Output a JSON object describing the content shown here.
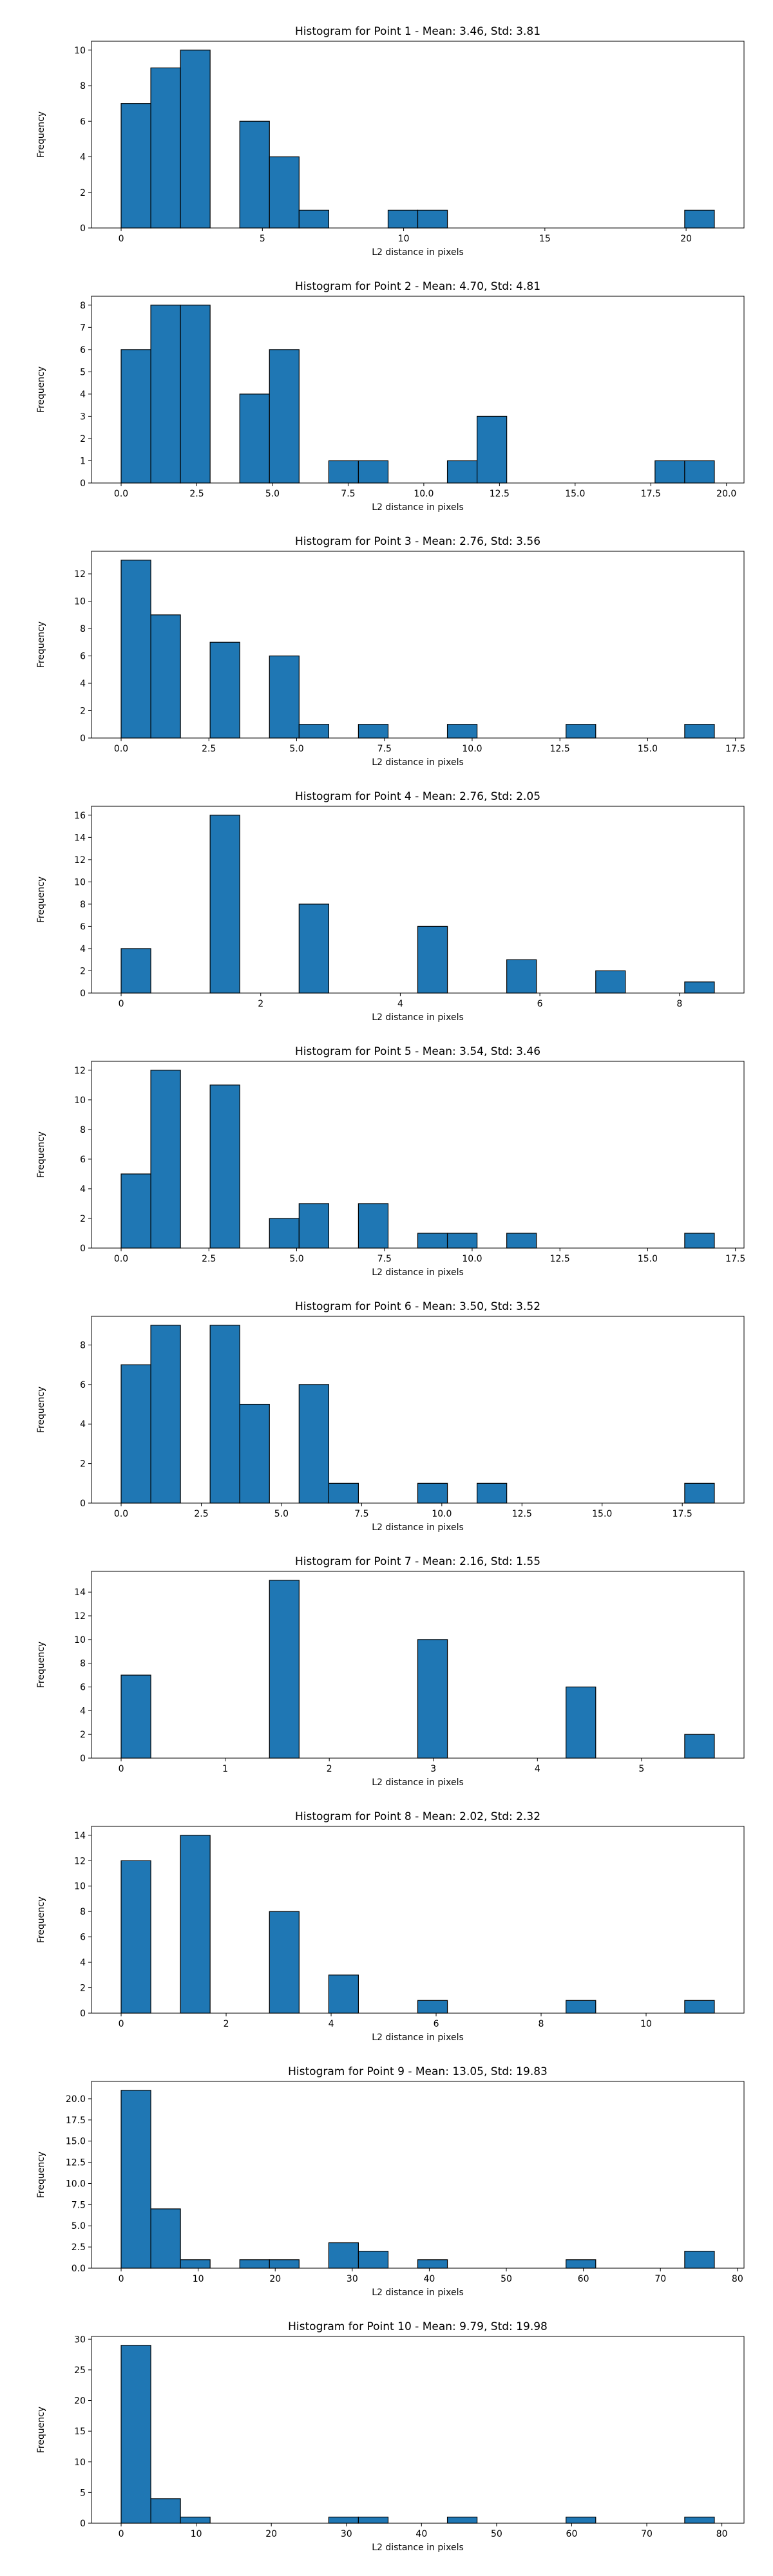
{
  "chart_data": [
    {
      "type": "histogram",
      "title": "Histogram for Point 1 - Mean: 3.46, Std: 3.81",
      "xlabel": "L2 distance in pixels",
      "ylabel": "Frequency",
      "xlim": [
        -1.05,
        22.05
      ],
      "ylim": [
        0,
        10.5
      ],
      "xticks": [
        {
          "v": 0,
          "label": "0"
        },
        {
          "v": 5,
          "label": "5"
        },
        {
          "v": 10,
          "label": "10"
        },
        {
          "v": 15,
          "label": "15"
        },
        {
          "v": 20,
          "label": "20"
        }
      ],
      "yticks": [
        {
          "v": 0,
          "label": "0"
        },
        {
          "v": 2,
          "label": "2"
        },
        {
          "v": 4,
          "label": "4"
        },
        {
          "v": 6,
          "label": "6"
        },
        {
          "v": 8,
          "label": "8"
        },
        {
          "v": 10,
          "label": "10"
        }
      ],
      "bin_edges": [
        0,
        1.05,
        2.1,
        3.15,
        4.2,
        5.25,
        6.3,
        7.35,
        8.4,
        9.45,
        10.5,
        11.55,
        12.6,
        13.65,
        14.7,
        15.75,
        16.8,
        17.85,
        18.9,
        19.95,
        21.0
      ],
      "counts": [
        7,
        9,
        10,
        0,
        6,
        4,
        1,
        0,
        0,
        1,
        1,
        0,
        0,
        0,
        0,
        0,
        0,
        0,
        0,
        1
      ]
    },
    {
      "type": "histogram",
      "title": "Histogram for Point 2 - Mean: 4.70, Std: 4.81",
      "xlabel": "L2 distance in pixels",
      "ylabel": "Frequency",
      "xlim": [
        -0.98,
        20.58
      ],
      "ylim": [
        0,
        8.4
      ],
      "xticks": [
        {
          "v": 0,
          "label": "0.0"
        },
        {
          "v": 2.5,
          "label": "2.5"
        },
        {
          "v": 5,
          "label": "5.0"
        },
        {
          "v": 7.5,
          "label": "7.5"
        },
        {
          "v": 10,
          "label": "10.0"
        },
        {
          "v": 12.5,
          "label": "12.5"
        },
        {
          "v": 15,
          "label": "15.0"
        },
        {
          "v": 17.5,
          "label": "17.5"
        },
        {
          "v": 20,
          "label": "20.0"
        }
      ],
      "yticks": [
        {
          "v": 0,
          "label": "0"
        },
        {
          "v": 1,
          "label": "1"
        },
        {
          "v": 2,
          "label": "2"
        },
        {
          "v": 3,
          "label": "3"
        },
        {
          "v": 4,
          "label": "4"
        },
        {
          "v": 5,
          "label": "5"
        },
        {
          "v": 6,
          "label": "6"
        },
        {
          "v": 7,
          "label": "7"
        },
        {
          "v": 8,
          "label": "8"
        }
      ],
      "bin_edges": [
        0,
        0.98,
        1.96,
        2.94,
        3.92,
        4.9,
        5.88,
        6.86,
        7.84,
        8.82,
        9.8,
        10.78,
        11.76,
        12.74,
        13.72,
        14.7,
        15.68,
        16.66,
        17.64,
        18.62,
        19.6
      ],
      "counts": [
        6,
        8,
        8,
        0,
        4,
        6,
        0,
        1,
        1,
        0,
        0,
        1,
        3,
        0,
        0,
        0,
        0,
        0,
        1,
        1
      ]
    },
    {
      "type": "histogram",
      "title": "Histogram for Point 3 - Mean: 2.76, Std: 3.56",
      "xlabel": "L2 distance in pixels",
      "ylabel": "Frequency",
      "xlim": [
        -0.845,
        17.745
      ],
      "ylim": [
        0,
        13.65
      ],
      "xticks": [
        {
          "v": 0,
          "label": "0.0"
        },
        {
          "v": 2.5,
          "label": "2.5"
        },
        {
          "v": 5,
          "label": "5.0"
        },
        {
          "v": 7.5,
          "label": "7.5"
        },
        {
          "v": 10,
          "label": "10.0"
        },
        {
          "v": 12.5,
          "label": "12.5"
        },
        {
          "v": 15,
          "label": "15.0"
        },
        {
          "v": 17.5,
          "label": "17.5"
        }
      ],
      "yticks": [
        {
          "v": 0,
          "label": "0"
        },
        {
          "v": 2,
          "label": "2"
        },
        {
          "v": 4,
          "label": "4"
        },
        {
          "v": 6,
          "label": "6"
        },
        {
          "v": 8,
          "label": "8"
        },
        {
          "v": 10,
          "label": "10"
        },
        {
          "v": 12,
          "label": "12"
        }
      ],
      "bin_edges": [
        0,
        0.845,
        1.69,
        2.535,
        3.38,
        4.225,
        5.07,
        5.915,
        6.76,
        7.605,
        8.45,
        9.295,
        10.14,
        10.985,
        11.83,
        12.675,
        13.52,
        14.365,
        15.21,
        16.055,
        16.9
      ],
      "counts": [
        13,
        9,
        0,
        7,
        0,
        6,
        1,
        0,
        1,
        0,
        0,
        1,
        0,
        0,
        0,
        1,
        0,
        0,
        0,
        1
      ]
    },
    {
      "type": "histogram",
      "title": "Histogram for Point 4 - Mean: 2.76, Std: 2.05",
      "xlabel": "L2 distance in pixels",
      "ylabel": "Frequency",
      "xlim": [
        -0.425,
        8.925
      ],
      "ylim": [
        0,
        16.8
      ],
      "xticks": [
        {
          "v": 0,
          "label": "0"
        },
        {
          "v": 2,
          "label": "2"
        },
        {
          "v": 4,
          "label": "4"
        },
        {
          "v": 6,
          "label": "6"
        },
        {
          "v": 8,
          "label": "8"
        }
      ],
      "yticks": [
        {
          "v": 0,
          "label": "0"
        },
        {
          "v": 2,
          "label": "2"
        },
        {
          "v": 4,
          "label": "4"
        },
        {
          "v": 6,
          "label": "6"
        },
        {
          "v": 8,
          "label": "8"
        },
        {
          "v": 10,
          "label": "10"
        },
        {
          "v": 12,
          "label": "12"
        },
        {
          "v": 14,
          "label": "14"
        },
        {
          "v": 16,
          "label": "16"
        }
      ],
      "bin_edges": [
        0,
        0.425,
        0.85,
        1.275,
        1.7,
        2.125,
        2.55,
        2.975,
        3.4,
        3.825,
        4.25,
        4.675,
        5.1,
        5.525,
        5.95,
        6.375,
        6.8,
        7.225,
        7.65,
        8.075,
        8.5
      ],
      "counts": [
        4,
        0,
        0,
        16,
        0,
        0,
        8,
        0,
        0,
        0,
        6,
        0,
        0,
        3,
        0,
        0,
        2,
        0,
        0,
        1
      ]
    },
    {
      "type": "histogram",
      "title": "Histogram for Point 5 - Mean: 3.54, Std: 3.46",
      "xlabel": "L2 distance in pixels",
      "ylabel": "Frequency",
      "xlim": [
        -0.845,
        17.745
      ],
      "ylim": [
        0,
        12.6
      ],
      "xticks": [
        {
          "v": 0,
          "label": "0.0"
        },
        {
          "v": 2.5,
          "label": "2.5"
        },
        {
          "v": 5,
          "label": "5.0"
        },
        {
          "v": 7.5,
          "label": "7.5"
        },
        {
          "v": 10,
          "label": "10.0"
        },
        {
          "v": 12.5,
          "label": "12.5"
        },
        {
          "v": 15,
          "label": "15.0"
        },
        {
          "v": 17.5,
          "label": "17.5"
        }
      ],
      "yticks": [
        {
          "v": 0,
          "label": "0"
        },
        {
          "v": 2,
          "label": "2"
        },
        {
          "v": 4,
          "label": "4"
        },
        {
          "v": 6,
          "label": "6"
        },
        {
          "v": 8,
          "label": "8"
        },
        {
          "v": 10,
          "label": "10"
        },
        {
          "v": 12,
          "label": "12"
        }
      ],
      "bin_edges": [
        0,
        0.845,
        1.69,
        2.535,
        3.38,
        4.225,
        5.07,
        5.915,
        6.76,
        7.605,
        8.45,
        9.295,
        10.14,
        10.985,
        11.83,
        12.675,
        13.52,
        14.365,
        15.21,
        16.055,
        16.9
      ],
      "counts": [
        5,
        12,
        0,
        11,
        0,
        2,
        3,
        0,
        3,
        0,
        1,
        1,
        0,
        1,
        0,
        0,
        0,
        0,
        0,
        1
      ]
    },
    {
      "type": "histogram",
      "title": "Histogram for Point 6 - Mean: 3.50, Std: 3.52",
      "xlabel": "L2 distance in pixels",
      "ylabel": "Frequency",
      "xlim": [
        -0.925,
        19.425
      ],
      "ylim": [
        0,
        9.45
      ],
      "xticks": [
        {
          "v": 0,
          "label": "0.0"
        },
        {
          "v": 2.5,
          "label": "2.5"
        },
        {
          "v": 5,
          "label": "5.0"
        },
        {
          "v": 7.5,
          "label": "7.5"
        },
        {
          "v": 10,
          "label": "10.0"
        },
        {
          "v": 12.5,
          "label": "12.5"
        },
        {
          "v": 15,
          "label": "15.0"
        },
        {
          "v": 17.5,
          "label": "17.5"
        }
      ],
      "yticks": [
        {
          "v": 0,
          "label": "0"
        },
        {
          "v": 2,
          "label": "2"
        },
        {
          "v": 4,
          "label": "4"
        },
        {
          "v": 6,
          "label": "6"
        },
        {
          "v": 8,
          "label": "8"
        }
      ],
      "bin_edges": [
        0,
        0.925,
        1.85,
        2.775,
        3.7,
        4.625,
        5.55,
        6.475,
        7.4,
        8.325,
        9.25,
        10.175,
        11.1,
        12.025,
        12.95,
        13.875,
        14.8,
        15.725,
        16.65,
        17.575,
        18.5
      ],
      "counts": [
        7,
        9,
        0,
        9,
        5,
        0,
        6,
        1,
        0,
        0,
        1,
        0,
        1,
        0,
        0,
        0,
        0,
        0,
        0,
        1
      ]
    },
    {
      "type": "histogram",
      "title": "Histogram for Point 7 - Mean: 2.16, Std: 1.55",
      "xlabel": "L2 distance in pixels",
      "ylabel": "Frequency",
      "xlim": [
        -0.285,
        5.985
      ],
      "ylim": [
        0,
        15.75
      ],
      "xticks": [
        {
          "v": 0,
          "label": "0"
        },
        {
          "v": 1,
          "label": "1"
        },
        {
          "v": 2,
          "label": "2"
        },
        {
          "v": 3,
          "label": "3"
        },
        {
          "v": 4,
          "label": "4"
        },
        {
          "v": 5,
          "label": "5"
        }
      ],
      "yticks": [
        {
          "v": 0,
          "label": "0"
        },
        {
          "v": 2,
          "label": "2"
        },
        {
          "v": 4,
          "label": "4"
        },
        {
          "v": 6,
          "label": "6"
        },
        {
          "v": 8,
          "label": "8"
        },
        {
          "v": 10,
          "label": "10"
        },
        {
          "v": 12,
          "label": "12"
        },
        {
          "v": 14,
          "label": "14"
        }
      ],
      "bin_edges": [
        0,
        0.285,
        0.57,
        0.855,
        1.14,
        1.425,
        1.71,
        1.995,
        2.28,
        2.565,
        2.85,
        3.135,
        3.42,
        3.705,
        3.99,
        4.275,
        4.56,
        4.845,
        5.13,
        5.415,
        5.7
      ],
      "counts": [
        7,
        0,
        0,
        0,
        0,
        15,
        0,
        0,
        0,
        0,
        10,
        0,
        0,
        0,
        0,
        6,
        0,
        0,
        0,
        2
      ]
    },
    {
      "type": "histogram",
      "title": "Histogram for Point 8 - Mean: 2.02, Std: 2.32",
      "xlabel": "L2 distance in pixels",
      "ylabel": "Frequency",
      "xlim": [
        -0.565,
        11.865
      ],
      "ylim": [
        0,
        14.7
      ],
      "xticks": [
        {
          "v": 0,
          "label": "0"
        },
        {
          "v": 2,
          "label": "2"
        },
        {
          "v": 4,
          "label": "4"
        },
        {
          "v": 6,
          "label": "6"
        },
        {
          "v": 8,
          "label": "8"
        },
        {
          "v": 10,
          "label": "10"
        }
      ],
      "yticks": [
        {
          "v": 0,
          "label": "0"
        },
        {
          "v": 2,
          "label": "2"
        },
        {
          "v": 4,
          "label": "4"
        },
        {
          "v": 6,
          "label": "6"
        },
        {
          "v": 8,
          "label": "8"
        },
        {
          "v": 10,
          "label": "10"
        },
        {
          "v": 12,
          "label": "12"
        },
        {
          "v": 14,
          "label": "14"
        }
      ],
      "bin_edges": [
        0,
        0.565,
        1.13,
        1.695,
        2.26,
        2.825,
        3.39,
        3.955,
        4.52,
        5.085,
        5.65,
        6.215,
        6.78,
        7.345,
        7.91,
        8.475,
        9.04,
        9.605,
        10.17,
        10.735,
        11.3
      ],
      "counts": [
        12,
        0,
        14,
        0,
        0,
        8,
        0,
        3,
        0,
        0,
        1,
        0,
        0,
        0,
        0,
        1,
        0,
        0,
        0,
        1
      ]
    },
    {
      "type": "histogram",
      "title": "Histogram for Point 9 - Mean: 13.05, Std: 19.83",
      "xlabel": "L2 distance in pixels",
      "ylabel": "Frequency",
      "xlim": [
        -3.85,
        80.85
      ],
      "ylim": [
        0,
        22.05
      ],
      "xticks": [
        {
          "v": 0,
          "label": "0"
        },
        {
          "v": 10,
          "label": "10"
        },
        {
          "v": 20,
          "label": "20"
        },
        {
          "v": 30,
          "label": "30"
        },
        {
          "v": 40,
          "label": "40"
        },
        {
          "v": 50,
          "label": "50"
        },
        {
          "v": 60,
          "label": "60"
        },
        {
          "v": 70,
          "label": "70"
        },
        {
          "v": 80,
          "label": "80"
        }
      ],
      "yticks": [
        {
          "v": 0,
          "label": "0.0"
        },
        {
          "v": 2.5,
          "label": "2.5"
        },
        {
          "v": 5,
          "label": "5.0"
        },
        {
          "v": 7.5,
          "label": "7.5"
        },
        {
          "v": 10,
          "label": "10.0"
        },
        {
          "v": 12.5,
          "label": "12.5"
        },
        {
          "v": 15,
          "label": "15.0"
        },
        {
          "v": 17.5,
          "label": "17.5"
        },
        {
          "v": 20,
          "label": "20.0"
        }
      ],
      "bin_edges": [
        0,
        3.85,
        7.7,
        11.55,
        15.4,
        19.25,
        23.1,
        26.95,
        30.8,
        34.65,
        38.5,
        42.35,
        46.2,
        50.05,
        53.9,
        57.75,
        61.6,
        65.45,
        69.3,
        73.15,
        77.0
      ],
      "counts": [
        21,
        7,
        1,
        0,
        1,
        1,
        0,
        3,
        2,
        0,
        1,
        0,
        0,
        0,
        0,
        1,
        0,
        0,
        0,
        2
      ]
    },
    {
      "type": "histogram",
      "title": "Histogram for Point 10 - Mean: 9.79, Std: 19.98",
      "xlabel": "L2 distance in pixels",
      "ylabel": "Frequency",
      "xlim": [
        -3.95,
        82.95
      ],
      "ylim": [
        0,
        30.45
      ],
      "xticks": [
        {
          "v": 0,
          "label": "0"
        },
        {
          "v": 10,
          "label": "10"
        },
        {
          "v": 20,
          "label": "20"
        },
        {
          "v": 30,
          "label": "30"
        },
        {
          "v": 40,
          "label": "40"
        },
        {
          "v": 50,
          "label": "50"
        },
        {
          "v": 60,
          "label": "60"
        },
        {
          "v": 70,
          "label": "70"
        },
        {
          "v": 80,
          "label": "80"
        }
      ],
      "yticks": [
        {
          "v": 0,
          "label": "0"
        },
        {
          "v": 5,
          "label": "5"
        },
        {
          "v": 10,
          "label": "10"
        },
        {
          "v": 15,
          "label": "15"
        },
        {
          "v": 20,
          "label": "20"
        },
        {
          "v": 25,
          "label": "25"
        },
        {
          "v": 30,
          "label": "30"
        }
      ],
      "bin_edges": [
        0,
        3.95,
        7.9,
        11.85,
        15.8,
        19.75,
        23.7,
        27.65,
        31.6,
        35.55,
        39.5,
        43.45,
        47.4,
        51.35,
        55.3,
        59.25,
        63.2,
        67.15,
        71.1,
        75.05,
        79.0
      ],
      "counts": [
        29,
        4,
        1,
        0,
        0,
        0,
        0,
        1,
        1,
        0,
        0,
        1,
        0,
        0,
        0,
        1,
        0,
        0,
        0,
        1
      ]
    }
  ],
  "style": {
    "bar_color": "#1f77b4",
    "edge_color": "#000000"
  }
}
